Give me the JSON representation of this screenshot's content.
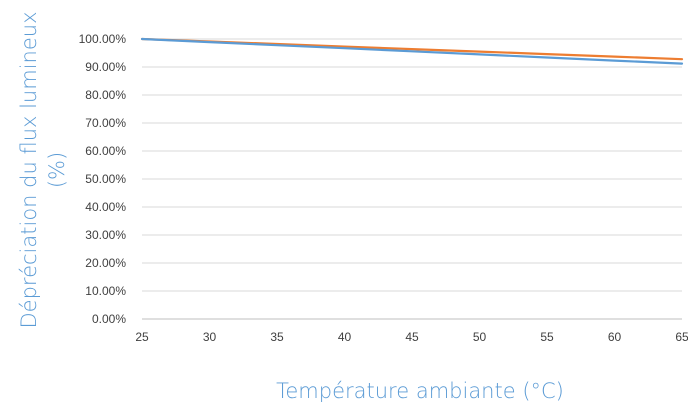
{
  "chart_data": {
    "type": "line",
    "title": "",
    "xlabel": "Température ambiante (°C)",
    "ylabel_line1": "Dépréciation du flux lumineux",
    "ylabel_line2": "(%)",
    "x": [
      25,
      30,
      35,
      40,
      45,
      50,
      55,
      60,
      65
    ],
    "x_ticks": [
      "25",
      "30",
      "35",
      "40",
      "45",
      "50",
      "55",
      "60",
      "65"
    ],
    "xlim": [
      25,
      65
    ],
    "ylim": [
      0,
      100
    ],
    "y_ticks": [
      0,
      10,
      20,
      30,
      40,
      50,
      60,
      70,
      80,
      90,
      100
    ],
    "y_tick_labels": [
      "0.00%",
      "10.00%",
      "20.00%",
      "30.00%",
      "40.00%",
      "50.00%",
      "60.00%",
      "70.00%",
      "80.00%",
      "90.00%",
      "100.00%"
    ],
    "grid": true,
    "legend": "none",
    "series": [
      {
        "values": [
          100,
          99.1,
          98.2,
          97.3,
          96.4,
          95.5,
          94.6,
          93.7,
          92.8
        ],
        "color": "#ed7d31"
      },
      {
        "values": [
          100,
          98.9,
          97.8,
          96.7,
          95.6,
          94.5,
          93.4,
          92.3,
          91.2
        ],
        "color": "#5b9bd5"
      }
    ],
    "gridline_color": "#d9d9d9",
    "axis_color": "#bfbfbf",
    "axis_title_color": "#5b9bd5"
  }
}
